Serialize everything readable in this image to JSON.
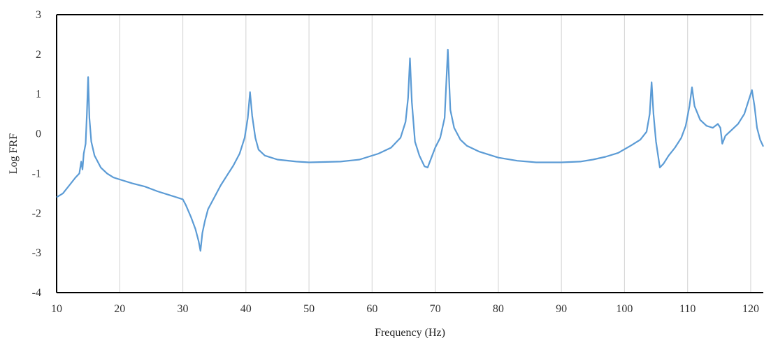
{
  "chart_data": {
    "type": "line",
    "title": "",
    "xlabel": "Frequency (Hz)",
    "ylabel": "Log FRF",
    "xlim": [
      10,
      122
    ],
    "ylim": [
      -4,
      3
    ],
    "xticks": [
      10,
      20,
      30,
      40,
      50,
      60,
      70,
      80,
      90,
      100,
      110,
      120
    ],
    "yticks": [
      -4,
      -3,
      -2,
      -1,
      0,
      1,
      2,
      3
    ],
    "grid": {
      "vertical": true,
      "horizontal": false
    },
    "line_color": "#5b9bd5",
    "series": [
      {
        "name": "",
        "points": [
          [
            10,
            -1.6
          ],
          [
            11,
            -1.5
          ],
          [
            12,
            -1.3
          ],
          [
            13,
            -1.1
          ],
          [
            13.6,
            -1.0
          ],
          [
            13.9,
            -0.7
          ],
          [
            14.1,
            -0.9
          ],
          [
            14.3,
            -0.5
          ],
          [
            14.6,
            -0.25
          ],
          [
            14.8,
            0.5
          ],
          [
            15.0,
            1.43
          ],
          [
            15.2,
            0.4
          ],
          [
            15.5,
            -0.2
          ],
          [
            16,
            -0.55
          ],
          [
            17,
            -0.85
          ],
          [
            18,
            -1.0
          ],
          [
            19,
            -1.1
          ],
          [
            20,
            -1.15
          ],
          [
            22,
            -1.25
          ],
          [
            24,
            -1.33
          ],
          [
            26,
            -1.45
          ],
          [
            28,
            -1.55
          ],
          [
            29,
            -1.6
          ],
          [
            30,
            -1.65
          ],
          [
            30.5,
            -1.8
          ],
          [
            31.3,
            -2.1
          ],
          [
            32,
            -2.4
          ],
          [
            32.5,
            -2.7
          ],
          [
            32.8,
            -2.95
          ],
          [
            33.1,
            -2.5
          ],
          [
            33.5,
            -2.2
          ],
          [
            34,
            -1.9
          ],
          [
            35,
            -1.6
          ],
          [
            36,
            -1.3
          ],
          [
            37,
            -1.05
          ],
          [
            38,
            -0.8
          ],
          [
            39,
            -0.5
          ],
          [
            39.8,
            -0.1
          ],
          [
            40.3,
            0.4
          ],
          [
            40.65,
            1.05
          ],
          [
            41.0,
            0.45
          ],
          [
            41.5,
            -0.1
          ],
          [
            42,
            -0.4
          ],
          [
            43,
            -0.55
          ],
          [
            45,
            -0.65
          ],
          [
            48,
            -0.7
          ],
          [
            50,
            -0.72
          ],
          [
            55,
            -0.7
          ],
          [
            58,
            -0.65
          ],
          [
            61,
            -0.5
          ],
          [
            63,
            -0.35
          ],
          [
            64.5,
            -0.1
          ],
          [
            65.3,
            0.3
          ],
          [
            65.7,
            0.9
          ],
          [
            66.0,
            1.9
          ],
          [
            66.3,
            0.8
          ],
          [
            66.8,
            -0.2
          ],
          [
            67.5,
            -0.55
          ],
          [
            68.3,
            -0.82
          ],
          [
            68.8,
            -0.85
          ],
          [
            69.4,
            -0.6
          ],
          [
            70,
            -0.35
          ],
          [
            70.8,
            -0.1
          ],
          [
            71.5,
            0.4
          ],
          [
            72.0,
            2.12
          ],
          [
            72.4,
            0.6
          ],
          [
            73,
            0.15
          ],
          [
            74,
            -0.15
          ],
          [
            75,
            -0.3
          ],
          [
            77,
            -0.45
          ],
          [
            80,
            -0.6
          ],
          [
            83,
            -0.68
          ],
          [
            86,
            -0.72
          ],
          [
            90,
            -0.72
          ],
          [
            93,
            -0.7
          ],
          [
            95,
            -0.65
          ],
          [
            97,
            -0.58
          ],
          [
            99,
            -0.48
          ],
          [
            101,
            -0.3
          ],
          [
            102.5,
            -0.15
          ],
          [
            103.5,
            0.05
          ],
          [
            104.0,
            0.5
          ],
          [
            104.3,
            1.3
          ],
          [
            104.6,
            0.5
          ],
          [
            105.0,
            -0.2
          ],
          [
            105.6,
            -0.85
          ],
          [
            106.2,
            -0.75
          ],
          [
            107,
            -0.55
          ],
          [
            108,
            -0.35
          ],
          [
            109,
            -0.1
          ],
          [
            109.7,
            0.2
          ],
          [
            110.3,
            0.7
          ],
          [
            110.7,
            1.17
          ],
          [
            111.1,
            0.7
          ],
          [
            112,
            0.35
          ],
          [
            113,
            0.2
          ],
          [
            114,
            0.15
          ],
          [
            114.8,
            0.25
          ],
          [
            115.2,
            0.15
          ],
          [
            115.5,
            -0.25
          ],
          [
            116,
            -0.05
          ],
          [
            117,
            0.1
          ],
          [
            118,
            0.25
          ],
          [
            119,
            0.5
          ],
          [
            119.7,
            0.85
          ],
          [
            120.2,
            1.1
          ],
          [
            120.6,
            0.7
          ],
          [
            121.0,
            0.15
          ],
          [
            121.5,
            -0.15
          ],
          [
            122,
            -0.32
          ]
        ]
      }
    ]
  }
}
